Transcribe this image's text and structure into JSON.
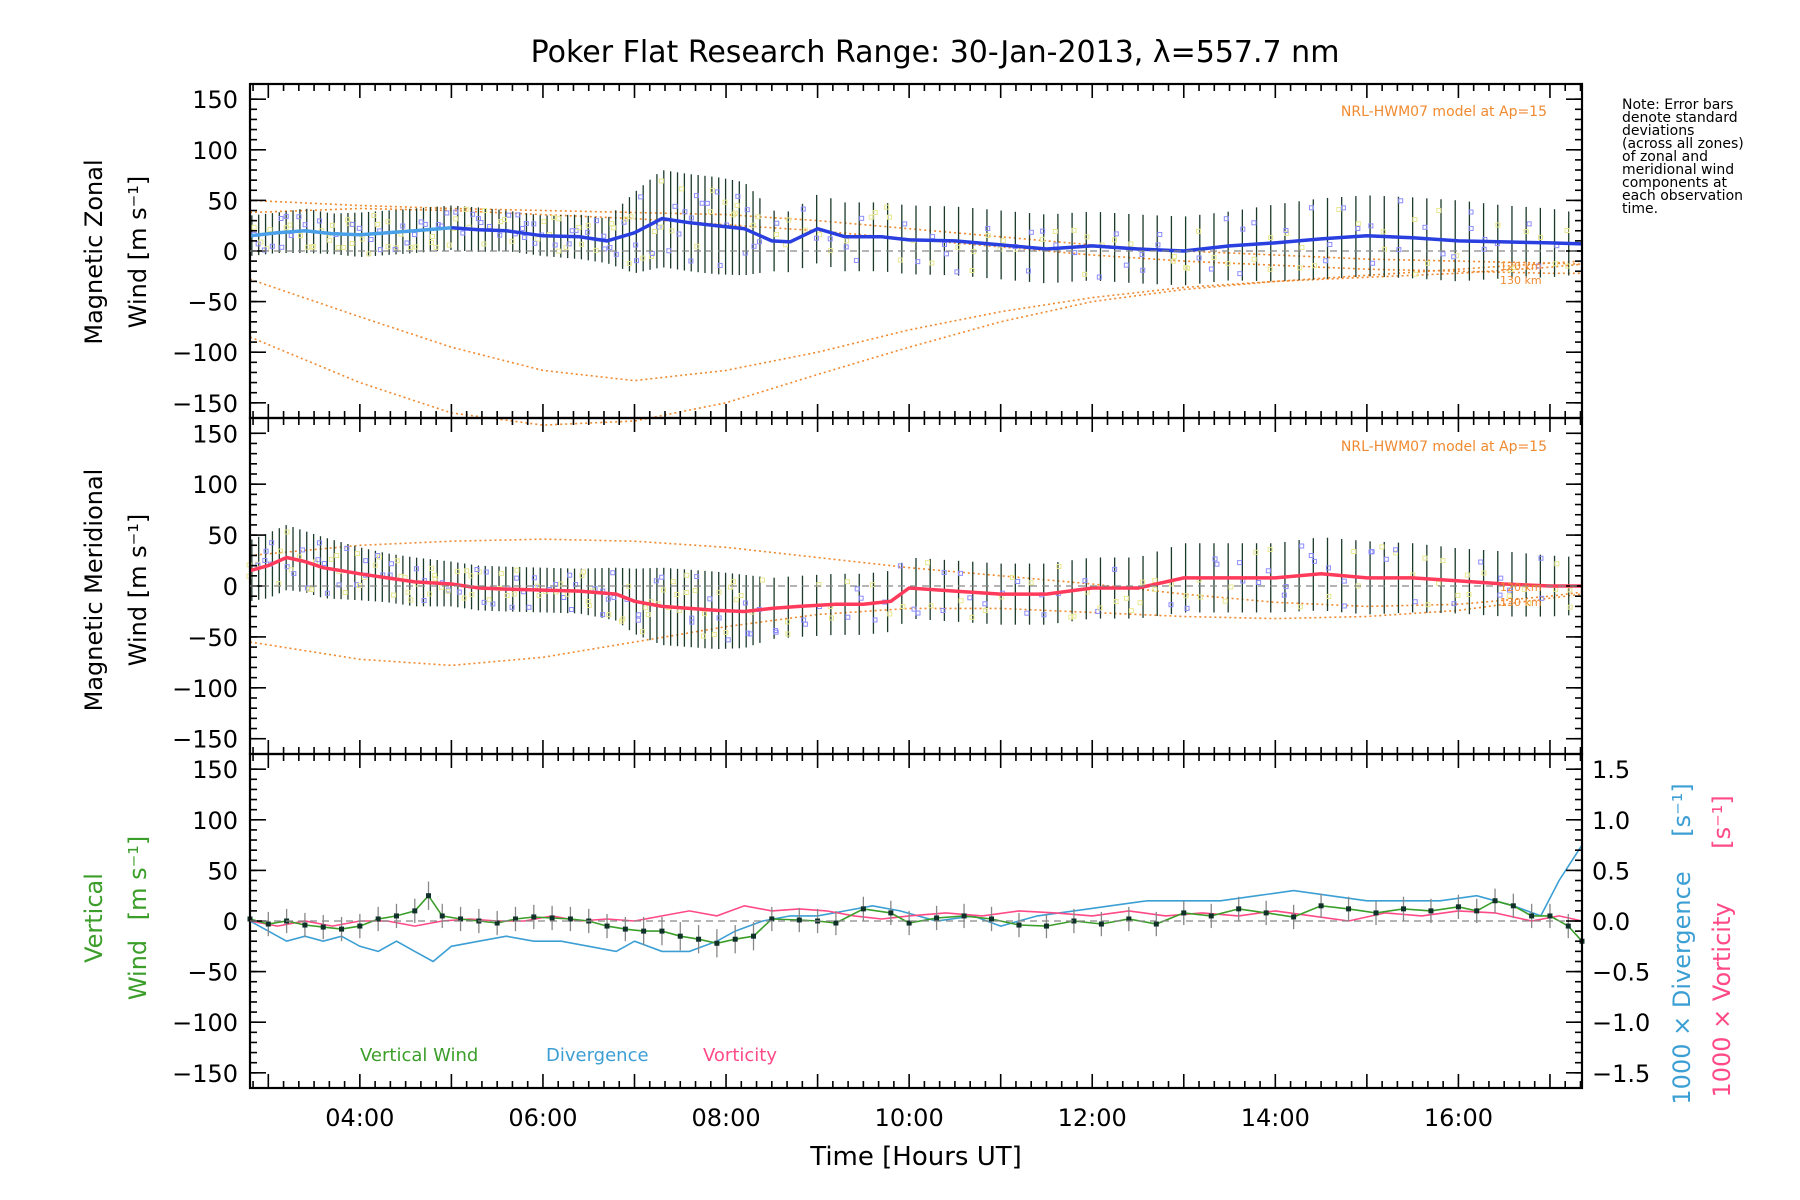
{
  "title": "Poker Flat Research Range: 30-Jan-2013, λ=557.7 nm",
  "note": [
    "Note: Error bars",
    "denote standard",
    "deviations",
    "(across all zones)",
    "of zonal and",
    "meridional wind",
    "components at",
    "each observation",
    "time."
  ],
  "colors": {
    "zonal": "#2a3fe0",
    "zonal_early": "#4aa0e8",
    "meridional": "#ff3a5a",
    "model": "#f08a30",
    "vertical": "#3c9e2a",
    "divergence": "#3c9fd4",
    "vorticity": "#ff4a86",
    "errorbar_dark": "#1a3a2a",
    "scatter_blue": "#8c8cff",
    "scatter_yellow": "#e8e890"
  },
  "chart_data": [
    {
      "type": "line",
      "id": "zonal",
      "ylabel": [
        "Magnetic Zonal",
        "Wind [m s⁻¹]"
      ],
      "ylim": [
        -165,
        165
      ],
      "yticks": [
        150,
        100,
        50,
        0,
        -50,
        -100,
        -150
      ],
      "ytick_labels": [
        "150",
        "100",
        "50",
        "0",
        "−50",
        "−100",
        "−150"
      ],
      "model_label": "NRL-HWM07 model at Ap=15",
      "model_alt_labels": [
        "120 km",
        "130 km"
      ],
      "xlim_hours": [
        2.8,
        17.35
      ],
      "series": [
        {
          "name": "Magnetic zonal wind",
          "x": [
            2.8,
            3.1,
            3.4,
            3.7,
            4.0,
            4.3,
            4.6,
            5.0,
            5.3,
            5.6,
            6.0,
            6.4,
            6.7,
            7.0,
            7.3,
            7.6,
            7.9,
            8.2,
            8.5,
            8.7,
            9.0,
            9.3,
            9.7,
            10.0,
            10.5,
            11.0,
            11.5,
            12.0,
            12.5,
            13.0,
            13.5,
            14.0,
            14.5,
            15.0,
            15.5,
            16.0,
            16.5,
            17.0,
            17.35
          ],
          "y": [
            15,
            18,
            20,
            17,
            16,
            18,
            20,
            23,
            21,
            20,
            15,
            14,
            10,
            18,
            32,
            28,
            25,
            22,
            10,
            9,
            22,
            14,
            14,
            11,
            10,
            6,
            2,
            5,
            2,
            0,
            5,
            8,
            12,
            15,
            13,
            10,
            9,
            8,
            7
          ],
          "err": [
            20,
            20,
            22,
            20,
            22,
            22,
            22,
            22,
            22,
            20,
            20,
            22,
            22,
            40,
            48,
            48,
            48,
            46,
            30,
            30,
            34,
            34,
            34,
            34,
            34,
            34,
            34,
            34,
            34,
            34,
            34,
            38,
            40,
            40,
            40,
            40,
            36,
            34,
            30
          ]
        },
        {
          "name": "NRL-HWM07 120 km",
          "x": [
            2.8,
            4.0,
            5.0,
            6.0,
            7.0,
            8.0,
            9.0,
            10.0,
            11.0,
            12.0,
            13.0,
            14.0,
            15.0,
            16.0,
            17.0,
            17.35
          ],
          "y": [
            -28,
            -65,
            -95,
            -118,
            -128,
            -118,
            -100,
            -78,
            -60,
            -46,
            -36,
            -30,
            -26,
            -22,
            -16,
            -13
          ]
        },
        {
          "name": "NRL-HWM07 130 km",
          "x": [
            2.8,
            4.0,
            5.0,
            6.0,
            7.0,
            8.0,
            9.0,
            10.0,
            11.0,
            12.0,
            13.0,
            14.0,
            15.0,
            16.0,
            17.0,
            17.35
          ],
          "y": [
            -85,
            -130,
            -160,
            -172,
            -168,
            -150,
            -122,
            -95,
            -70,
            -50,
            -38,
            -30,
            -24,
            -18,
            -12,
            -10
          ]
        },
        {
          "name": "NRL-HWM07 upper 120 km",
          "x": [
            2.8,
            4.0,
            5.0,
            6.0,
            7.0,
            8.0,
            9.0,
            10.0,
            11.0,
            12.0,
            13.0,
            14.0,
            15.0,
            16.0,
            17.0,
            17.35
          ],
          "y": [
            50,
            45,
            42,
            40,
            38,
            36,
            30,
            22,
            14,
            6,
            0,
            -4,
            -8,
            -10,
            -12,
            -13
          ]
        },
        {
          "name": "NRL-HWM07 upper 130 km",
          "x": [
            2.8,
            4.0,
            5.0,
            6.0,
            7.0,
            8.0,
            9.0,
            10.0,
            11.0,
            12.0,
            13.0,
            14.0,
            15.0,
            16.0,
            17.0,
            17.35
          ],
          "y": [
            38,
            42,
            40,
            36,
            32,
            26,
            20,
            12,
            4,
            -4,
            -10,
            -14,
            -18,
            -20,
            -22,
            -22
          ]
        }
      ]
    },
    {
      "type": "line",
      "id": "meridional",
      "ylabel": [
        "Magnetic Meridional",
        "Wind [m s⁻¹]"
      ],
      "ylim": [
        -165,
        165
      ],
      "yticks": [
        150,
        100,
        50,
        0,
        -50,
        -100,
        -150
      ],
      "ytick_labels": [
        "150",
        "100",
        "50",
        "0",
        "−50",
        "−100",
        "−150"
      ],
      "model_label": "NRL-HWM07 model at Ap=15",
      "model_alt_labels": [
        "120 km",
        "130 km"
      ],
      "xlim_hours": [
        2.8,
        17.35
      ],
      "series": [
        {
          "name": "Magnetic meridional wind",
          "x": [
            2.8,
            3.0,
            3.2,
            3.4,
            3.6,
            3.8,
            4.0,
            4.3,
            4.6,
            5.0,
            5.3,
            5.6,
            6.0,
            6.4,
            6.8,
            7.0,
            7.3,
            7.6,
            7.9,
            8.2,
            8.5,
            8.8,
            9.2,
            9.5,
            9.8,
            10.0,
            10.5,
            11.0,
            11.5,
            12.0,
            12.5,
            13.0,
            13.5,
            14.0,
            14.5,
            15.0,
            15.5,
            16.0,
            16.5,
            17.0,
            17.35
          ],
          "y": [
            15,
            20,
            28,
            24,
            18,
            15,
            12,
            8,
            4,
            2,
            -2,
            -3,
            -4,
            -5,
            -8,
            -15,
            -20,
            -22,
            -24,
            -25,
            -22,
            -20,
            -18,
            -18,
            -15,
            -2,
            -5,
            -8,
            -8,
            -2,
            -2,
            8,
            8,
            8,
            12,
            8,
            8,
            5,
            2,
            0,
            0
          ],
          "err": [
            30,
            32,
            32,
            30,
            30,
            28,
            26,
            24,
            24,
            22,
            22,
            22,
            22,
            22,
            26,
            32,
            38,
            38,
            38,
            36,
            30,
            30,
            30,
            30,
            30,
            30,
            30,
            30,
            30,
            30,
            30,
            34,
            34,
            34,
            36,
            36,
            34,
            32,
            32,
            30,
            28
          ]
        },
        {
          "name": "NRL-HWM07 120 km",
          "x": [
            2.8,
            4.0,
            5.0,
            6.0,
            7.0,
            8.0,
            9.0,
            10.0,
            11.0,
            12.0,
            13.0,
            14.0,
            15.0,
            16.0,
            17.0,
            17.35
          ],
          "y": [
            -55,
            -72,
            -78,
            -70,
            -55,
            -40,
            -28,
            -22,
            -22,
            -26,
            -30,
            -32,
            -30,
            -24,
            -12,
            -8
          ]
        },
        {
          "name": "NRL-HWM07 130 km",
          "x": [
            2.8,
            4.0,
            5.0,
            6.0,
            7.0,
            8.0,
            9.0,
            10.0,
            11.0,
            12.0,
            13.0,
            14.0,
            15.0,
            16.0,
            17.0,
            17.35
          ],
          "y": [
            30,
            40,
            44,
            46,
            44,
            38,
            28,
            18,
            10,
            2,
            -8,
            -16,
            -20,
            -18,
            -10,
            -6
          ]
        }
      ]
    },
    {
      "type": "line",
      "id": "vertical",
      "ylabel_parts": [
        "Vertical",
        "Wind",
        "[m s⁻¹]"
      ],
      "ylim": [
        -165,
        165
      ],
      "yticks": [
        150,
        100,
        50,
        0,
        -50,
        -100,
        -150
      ],
      "ytick_labels": [
        "150",
        "100",
        "50",
        "0",
        "−50",
        "−100",
        "−150"
      ],
      "y2lim": [
        -1.65,
        1.65
      ],
      "y2ticks": [
        1.5,
        1.0,
        0.5,
        0.0,
        -0.5,
        -1.0,
        -1.5
      ],
      "y2tick_labels": [
        "1.5",
        "1.0",
        "0.5",
        "0.0",
        "−0.5",
        "−1.0",
        "−1.5"
      ],
      "y2label_divergence": [
        "1000 × Divergence",
        "[s⁻¹]"
      ],
      "y2label_vorticity": [
        "1000 × Vorticity",
        "[s⁻¹]"
      ],
      "legend": [
        "Vertical Wind",
        "Divergence",
        "Vorticity"
      ],
      "xlim_hours": [
        2.8,
        17.35
      ],
      "xticks": [
        4,
        6,
        8,
        10,
        12,
        14,
        16
      ],
      "xtick_labels": [
        "04:00",
        "06:00",
        "08:00",
        "10:00",
        "12:00",
        "14:00",
        "16:00"
      ],
      "xlabel": "Time [Hours UT]",
      "series": [
        {
          "name": "Vertical Wind",
          "axis": "left",
          "x": [
            2.8,
            3.0,
            3.2,
            3.4,
            3.6,
            3.8,
            4.0,
            4.2,
            4.4,
            4.6,
            4.75,
            4.9,
            5.1,
            5.3,
            5.5,
            5.7,
            5.9,
            6.1,
            6.3,
            6.5,
            6.7,
            6.9,
            7.1,
            7.3,
            7.5,
            7.7,
            7.9,
            8.1,
            8.3,
            8.5,
            8.8,
            9.0,
            9.2,
            9.5,
            9.8,
            10.0,
            10.3,
            10.6,
            10.9,
            11.2,
            11.5,
            11.8,
            12.1,
            12.4,
            12.7,
            13.0,
            13.3,
            13.6,
            13.9,
            14.2,
            14.5,
            14.8,
            15.1,
            15.4,
            15.7,
            16.0,
            16.2,
            16.4,
            16.6,
            16.8,
            17.0,
            17.2,
            17.35
          ],
          "y": [
            2,
            -3,
            0,
            -4,
            -6,
            -8,
            -5,
            2,
            5,
            10,
            25,
            5,
            2,
            0,
            -2,
            2,
            4,
            3,
            2,
            0,
            -5,
            -8,
            -10,
            -10,
            -15,
            -18,
            -22,
            -18,
            -15,
            2,
            1,
            0,
            -2,
            12,
            8,
            -2,
            3,
            5,
            2,
            -4,
            -5,
            0,
            -3,
            2,
            -3,
            8,
            5,
            12,
            8,
            4,
            15,
            12,
            8,
            12,
            10,
            14,
            10,
            20,
            15,
            5,
            5,
            -5,
            -20
          ],
          "err": [
            12,
            12,
            12,
            12,
            12,
            12,
            12,
            12,
            12,
            12,
            14,
            12,
            12,
            12,
            12,
            12,
            12,
            12,
            12,
            12,
            12,
            12,
            14,
            14,
            14,
            14,
            14,
            14,
            14,
            12,
            12,
            12,
            12,
            12,
            12,
            12,
            12,
            12,
            12,
            12,
            12,
            12,
            12,
            12,
            12,
            12,
            12,
            12,
            12,
            12,
            12,
            12,
            12,
            12,
            12,
            12,
            12,
            12,
            12,
            12,
            12,
            12,
            12
          ]
        },
        {
          "name": "Divergence",
          "axis": "right",
          "x": [
            2.8,
            3.0,
            3.2,
            3.4,
            3.6,
            3.8,
            4.0,
            4.2,
            4.4,
            4.6,
            4.8,
            5.0,
            5.3,
            5.6,
            5.9,
            6.2,
            6.5,
            6.8,
            7.0,
            7.3,
            7.6,
            7.9,
            8.1,
            8.4,
            8.7,
            9.0,
            9.3,
            9.6,
            9.9,
            10.3,
            10.7,
            11.0,
            11.4,
            11.8,
            12.2,
            12.6,
            13.0,
            13.4,
            13.8,
            14.2,
            14.6,
            15.0,
            15.4,
            15.8,
            16.2,
            16.6,
            16.9,
            17.1,
            17.35
          ],
          "y": [
            0.0,
            -0.1,
            -0.2,
            -0.15,
            -0.2,
            -0.15,
            -0.25,
            -0.3,
            -0.2,
            -0.3,
            -0.4,
            -0.25,
            -0.2,
            -0.15,
            -0.2,
            -0.2,
            -0.25,
            -0.3,
            -0.2,
            -0.3,
            -0.3,
            -0.2,
            -0.1,
            0.0,
            0.05,
            0.05,
            0.1,
            0.15,
            0.1,
            0.0,
            0.05,
            -0.05,
            0.05,
            0.1,
            0.15,
            0.2,
            0.2,
            0.2,
            0.25,
            0.3,
            0.25,
            0.2,
            0.2,
            0.2,
            0.25,
            0.15,
            0.05,
            0.4,
            0.75
          ]
        },
        {
          "name": "Vorticity",
          "axis": "right",
          "x": [
            2.8,
            3.1,
            3.4,
            3.7,
            4.0,
            4.3,
            4.6,
            4.9,
            5.2,
            5.5,
            5.8,
            6.1,
            6.4,
            6.7,
            7.0,
            7.3,
            7.6,
            7.9,
            8.2,
            8.5,
            8.8,
            9.1,
            9.4,
            9.7,
            10.0,
            10.4,
            10.8,
            11.2,
            11.6,
            12.0,
            12.4,
            12.8,
            13.2,
            13.6,
            14.0,
            14.4,
            14.8,
            15.2,
            15.6,
            16.0,
            16.4,
            16.8,
            17.1,
            17.35
          ],
          "y": [
            0.0,
            -0.05,
            0.0,
            -0.05,
            0.0,
            0.0,
            -0.05,
            0.0,
            0.02,
            0.0,
            0.0,
            0.05,
            0.0,
            0.02,
            0.0,
            0.05,
            0.1,
            0.05,
            0.15,
            0.1,
            0.12,
            0.1,
            0.05,
            0.02,
            0.05,
            0.08,
            0.05,
            0.1,
            0.08,
            0.05,
            0.1,
            0.05,
            0.08,
            0.05,
            0.1,
            0.05,
            0.0,
            0.08,
            0.05,
            0.1,
            0.08,
            0.0,
            0.05,
            0.0
          ]
        }
      ]
    }
  ]
}
